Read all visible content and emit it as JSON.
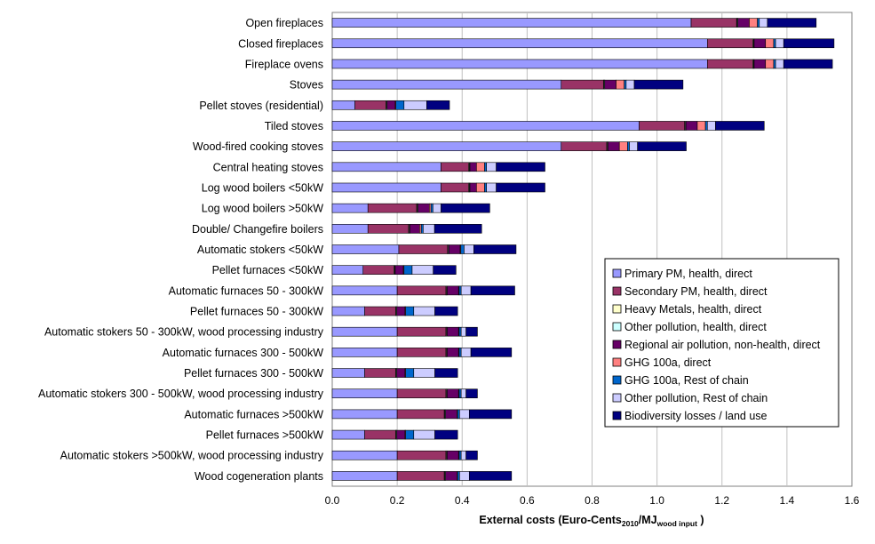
{
  "chart_data": {
    "type": "bar",
    "orientation": "horizontal",
    "stacked": true,
    "categories": [
      "Open fireplaces",
      "Closed fireplaces",
      "Fireplace ovens",
      "Stoves",
      "Pellet stoves (residential)",
      "Tiled stoves",
      "Wood-fired cooking stoves",
      "Central heating stoves",
      "Log wood boilers <50kW",
      "Log wood boilers >50kW",
      "Double/ Changefire boilers",
      "Automatic stokers <50kW",
      "Pellet furnaces <50kW",
      "Automatic furnaces 50 - 300kW",
      "Pellet furnaces 50 - 300kW",
      "Automatic stokers 50 - 300kW, wood processing industry",
      "Automatic furnaces 300 - 500kW",
      "Pellet furnaces 300 - 500kW",
      "Automatic stokers 300 - 500kW, wood processing industry",
      "Automatic furnaces >500kW",
      "Pellet furnaces >500kW",
      "Automatic stokers >500kW, wood processing industry",
      "Wood cogeneration plants"
    ],
    "series": [
      {
        "name": "Primary PM, health, direct",
        "color": "#9999ff",
        "values": [
          1.105,
          1.155,
          1.155,
          0.705,
          0.07,
          0.945,
          0.705,
          0.335,
          0.335,
          0.11,
          0.11,
          0.205,
          0.095,
          0.2,
          0.1,
          0.2,
          0.2,
          0.1,
          0.2,
          0.2,
          0.1,
          0.2,
          0.2
        ]
      },
      {
        "name": "Secondary PM, health, direct",
        "color": "#993366",
        "values": [
          0.14,
          0.14,
          0.14,
          0.13,
          0.095,
          0.14,
          0.14,
          0.085,
          0.085,
          0.15,
          0.125,
          0.15,
          0.095,
          0.15,
          0.095,
          0.15,
          0.15,
          0.095,
          0.15,
          0.145,
          0.095,
          0.15,
          0.145
        ]
      },
      {
        "name": "Heavy Metals, health, direct",
        "color": "#ffffcc",
        "values": [
          0.002,
          0.002,
          0.002,
          0.002,
          0.002,
          0.002,
          0.002,
          0.002,
          0.002,
          0.002,
          0.002,
          0.002,
          0.002,
          0.002,
          0.002,
          0.002,
          0.002,
          0.002,
          0.002,
          0.002,
          0.002,
          0.002,
          0.002
        ]
      },
      {
        "name": "Other pollution, health, direct",
        "color": "#ccffff",
        "values": [
          0.002,
          0.002,
          0.002,
          0.002,
          0.002,
          0.002,
          0.002,
          0.002,
          0.002,
          0.002,
          0.002,
          0.002,
          0.002,
          0.002,
          0.002,
          0.002,
          0.002,
          0.002,
          0.002,
          0.002,
          0.002,
          0.002,
          0.002
        ]
      },
      {
        "name": "Regional air pollution, non-health, direct",
        "color": "#660066",
        "values": [
          0.035,
          0.035,
          0.035,
          0.035,
          0.025,
          0.035,
          0.035,
          0.02,
          0.02,
          0.035,
          0.03,
          0.035,
          0.025,
          0.035,
          0.025,
          0.035,
          0.035,
          0.025,
          0.035,
          0.035,
          0.025,
          0.035,
          0.035
        ]
      },
      {
        "name": "GHG 100a, direct",
        "color": "#ff8080",
        "values": [
          0.025,
          0.025,
          0.025,
          0.025,
          0.002,
          0.025,
          0.025,
          0.025,
          0.025,
          0.005,
          0.005,
          0.002,
          0.002,
          0.002,
          0.002,
          0.002,
          0.002,
          0.002,
          0.002,
          0.002,
          0.002,
          0.002,
          0.002
        ]
      },
      {
        "name": "GHG 100a, Rest of chain",
        "color": "#0066cc",
        "values": [
          0.006,
          0.006,
          0.006,
          0.006,
          0.025,
          0.006,
          0.006,
          0.006,
          0.006,
          0.006,
          0.006,
          0.01,
          0.025,
          0.006,
          0.025,
          0.006,
          0.006,
          0.025,
          0.006,
          0.006,
          0.025,
          0.006,
          0.006
        ]
      },
      {
        "name": "Other pollution, Rest of chain",
        "color": "#ccccff",
        "values": [
          0.025,
          0.025,
          0.025,
          0.025,
          0.07,
          0.025,
          0.025,
          0.03,
          0.03,
          0.025,
          0.035,
          0.03,
          0.065,
          0.03,
          0.065,
          0.015,
          0.03,
          0.065,
          0.015,
          0.03,
          0.065,
          0.015,
          0.03
        ]
      },
      {
        "name": "Biodiversity losses / land use",
        "color": "#000080",
        "values": [
          0.15,
          0.155,
          0.15,
          0.15,
          0.07,
          0.15,
          0.15,
          0.15,
          0.15,
          0.15,
          0.145,
          0.13,
          0.07,
          0.135,
          0.07,
          0.035,
          0.125,
          0.07,
          0.035,
          0.13,
          0.07,
          0.035,
          0.13
        ]
      }
    ],
    "xlabel_main": "External costs (Euro-Cents",
    "xlabel_sub1": "2010",
    "xlabel_mid": "/MJ",
    "xlabel_sub2": "wood input",
    "xlabel_end": " )",
    "xlim": [
      0,
      1.6
    ],
    "xticks": [
      "0.0",
      "0.2",
      "0.4",
      "0.6",
      "0.8",
      "1.0",
      "1.2",
      "1.4",
      "1.6"
    ],
    "grid": "vertical",
    "legend_position": "bottom-right"
  }
}
